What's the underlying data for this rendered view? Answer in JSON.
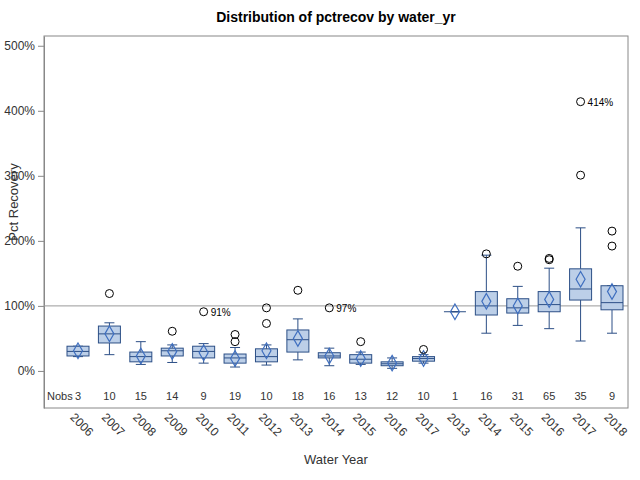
{
  "chart_data": {
    "type": "box",
    "title": "Distribution of pctrecov by water_yr",
    "x_label": "Water Year",
    "y_label": "Pct Recovery",
    "nobs_label": "Nobs",
    "categories": [
      "2006",
      "2007",
      "2008",
      "2009",
      "2010",
      "2011",
      "2012",
      "2013",
      "2014",
      "2015",
      "2016",
      "2017",
      "2013",
      "2014",
      "2015",
      "2016",
      "2017",
      "2018"
    ],
    "whisker_low": [
      22,
      25,
      10,
      13,
      12,
      6,
      9,
      17,
      8,
      10,
      4,
      12,
      91,
      58,
      70,
      65,
      46,
      58
    ],
    "q1": [
      23,
      43,
      14,
      23,
      20,
      12,
      14,
      29,
      20,
      12,
      8,
      15,
      91,
      86,
      89,
      91,
      109,
      94
    ],
    "median": [
      30,
      57,
      22,
      31,
      30,
      20,
      22,
      48,
      23,
      18,
      11,
      19,
      91,
      100,
      97,
      102,
      126,
      105
    ],
    "q3": [
      38,
      69,
      29,
      35,
      38,
      26,
      34,
      63,
      28,
      25,
      14,
      22,
      91,
      122,
      111,
      122,
      157,
      131
    ],
    "whisker_high": [
      38,
      74,
      45,
      40,
      42,
      36,
      40,
      80,
      35,
      29,
      20,
      25,
      91,
      178,
      130,
      158,
      220,
      131
    ],
    "mean": [
      31,
      57,
      23,
      30,
      28,
      19,
      31,
      50,
      23,
      19,
      12,
      19,
      91,
      107,
      100,
      110,
      141,
      122
    ],
    "outliers": [
      [],
      [
        119
      ],
      [],
      [
        61
      ],
      [
        91
      ],
      [
        45,
        56
      ],
      [
        73,
        97
      ],
      [
        124
      ],
      [
        97
      ],
      [
        45
      ],
      [],
      [
        33
      ],
      [],
      [
        180
      ],
      [
        161
      ],
      [
        171,
        173
      ],
      [
        301,
        414
      ],
      [
        192,
        215
      ]
    ],
    "nobs": [
      3,
      10,
      15,
      14,
      9,
      19,
      10,
      18,
      16,
      13,
      12,
      10,
      1,
      16,
      31,
      65,
      35,
      9
    ],
    "annotations": [
      {
        "text": "91%",
        "index": 4,
        "value": 91
      },
      {
        "text": "97%",
        "index": 8,
        "value": 97
      },
      {
        "text": "414%",
        "index": 16,
        "value": 414
      }
    ],
    "reference_line": 100,
    "color": "#bccfe8",
    "grid": false,
    "ylim": [
      -57,
      515
    ],
    "yticks": [
      {
        "value": 0,
        "label": "0%"
      },
      {
        "value": 100,
        "label": "100%"
      },
      {
        "value": 200,
        "label": "200%"
      },
      {
        "value": 300,
        "label": "300%"
      },
      {
        "value": 400,
        "label": "400%"
      },
      {
        "value": 500,
        "label": "500%"
      }
    ]
  }
}
